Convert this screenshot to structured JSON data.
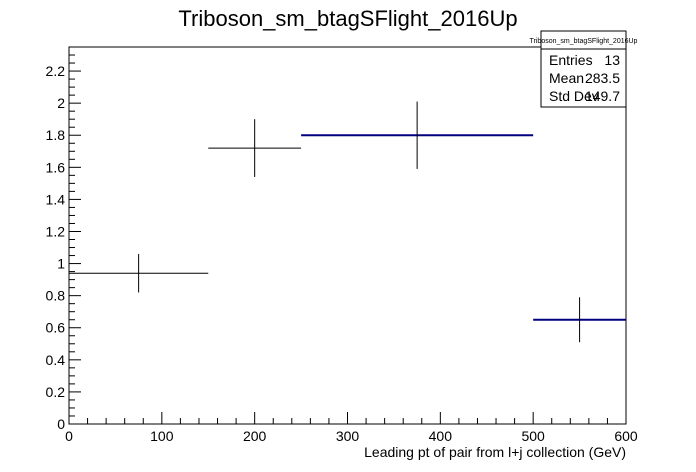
{
  "chart_data": {
    "type": "histogram",
    "title": "Triboson_sm_btagSFlight_2016Up",
    "xlabel": "Leading pt of pair from l+j collection (GeV)",
    "ylabel": "",
    "xlim": [
      0,
      600
    ],
    "ylim": [
      0,
      2.35
    ],
    "x_ticks": [
      "0",
      "100",
      "200",
      "300",
      "400",
      "500",
      "600"
    ],
    "y_ticks": [
      "0",
      "0.2",
      "0.4",
      "0.6",
      "0.8",
      "1",
      "1.2",
      "1.4",
      "1.6",
      "1.8",
      "2",
      "2.2"
    ],
    "bins": [
      {
        "x_low": 0,
        "x_high": 150,
        "value": 0.94,
        "error": 0.12,
        "color": "#000000"
      },
      {
        "x_low": 150,
        "x_high": 250,
        "value": 1.72,
        "error": 0.18,
        "color": "#000000"
      },
      {
        "x_low": 250,
        "x_high": 500,
        "value": 1.8,
        "error": 0.21,
        "color": "#000080"
      },
      {
        "x_low": 500,
        "x_high": 600,
        "value": 0.65,
        "error": 0.14,
        "color": "#000080"
      }
    ],
    "stats_box": {
      "title": "Triboson_sm_btagSFlight_2016Up",
      "rows": [
        {
          "label": "Entries",
          "value": "13"
        },
        {
          "label": "Mean",
          "value": "283.5"
        },
        {
          "label": "Std Dev",
          "value": "149.7"
        }
      ]
    },
    "grid": false
  }
}
